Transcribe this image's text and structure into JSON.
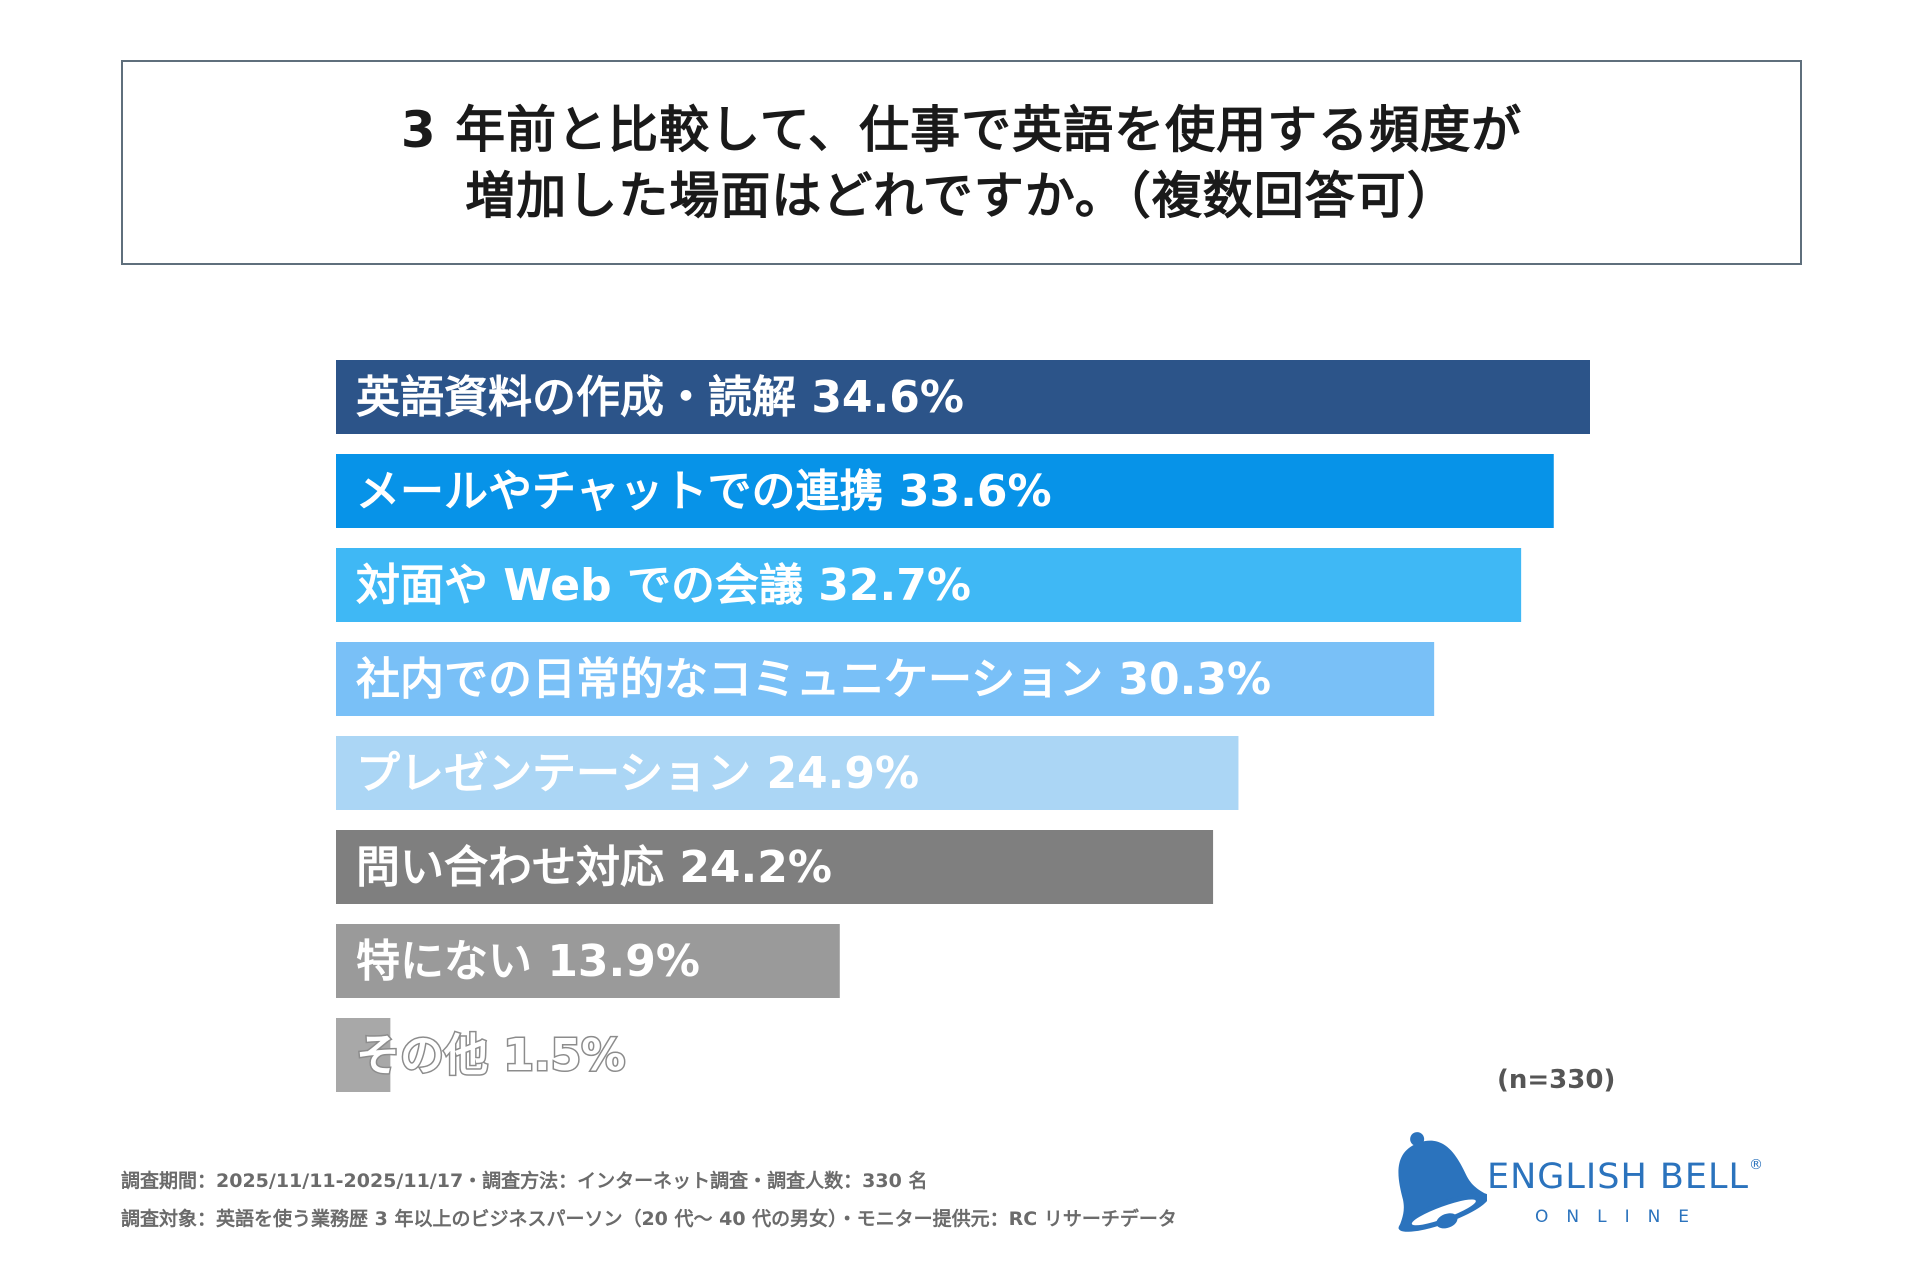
{
  "title": {
    "line1": "3 年前と比較して、仕事で英語を使用する頻度が",
    "line2": "増加した場面はどれですか。（複数回答可）"
  },
  "chart_data": {
    "type": "bar",
    "orientation": "horizontal",
    "categories": [
      "英語資料の作成・読解",
      "メールやチャットでの連携",
      "対面や Web での会議",
      "社内での日常的なコミュニケーション",
      "プレゼンテーション",
      "問い合わせ対応",
      "特にない",
      "その他"
    ],
    "values": [
      34.6,
      33.6,
      32.7,
      30.3,
      24.9,
      24.2,
      13.9,
      1.5
    ],
    "value_labels": [
      "34.6%",
      "33.6%",
      "32.7%",
      "30.3%",
      "24.9%",
      "24.2%",
      "13.9%",
      "1.5%"
    ],
    "colors": [
      "#2c5489",
      "#0793e8",
      "#3fb8f5",
      "#79c0f7",
      "#abd6f5",
      "#7f7f7f",
      "#9a9a9a",
      "#a8a8a8"
    ],
    "xlim": [
      0,
      34.6
    ],
    "title": "3 年前と比較して、仕事で英語を使用する頻度が増加した場面はどれですか。（複数回答可）"
  },
  "sample_note": "(n=330)",
  "footer": {
    "line1": "調査期間：2025/11/11-2025/11/17・調査方法：インターネット調査・調査人数：330 名",
    "line2": "調査対象：英語を使う業務歴 3 年以上のビジネスパーソン（20 代～ 40 代の男女）・モニター提供元：RC リサーチデータ"
  },
  "logo": {
    "name": "ENGLISH BELL",
    "registered": "®",
    "sub": "ONLINE",
    "color": "#2b73bd"
  }
}
